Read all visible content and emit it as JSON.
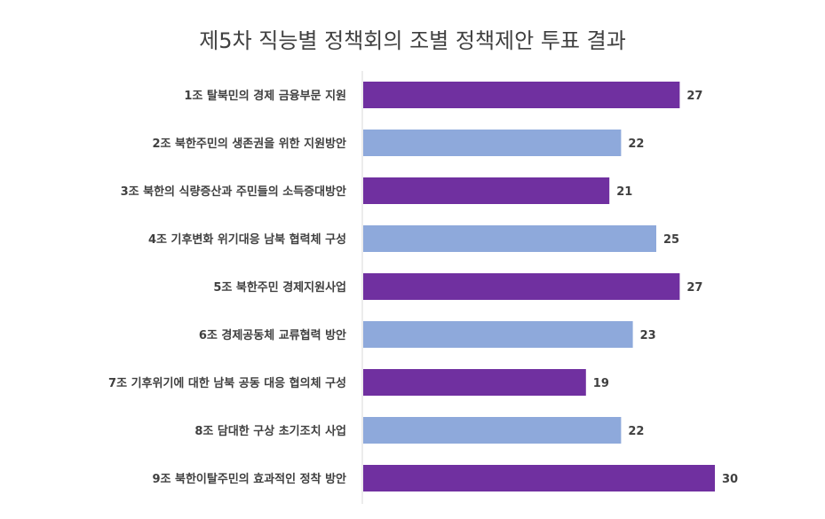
{
  "chart_data": {
    "type": "bar",
    "orientation": "horizontal",
    "title": "제5차 직능별 정책회의 조별 정책제안 투표 결과",
    "categories": [
      "1조 탈북민의 경제 금융부문 지원",
      "2조 북한주민의 생존권을 위한 지원방안",
      "3조 북한의 식량증산과 주민들의 소득증대방안",
      "4조 기후변화 위기대응 남북 협력체 구성",
      "5조 북한주민 경제지원사업",
      "6조 경제공동체 교류협력 방안",
      "7조 기후위기에 대한 남북 공동 대응 협의체 구성",
      "8조 담대한 구상 초기조치 사업",
      "9조 북한이탈주민의 효과적인 정착 방안"
    ],
    "values": [
      27,
      22,
      21,
      25,
      27,
      23,
      19,
      22,
      30
    ],
    "bar_colors": [
      "#7030A0",
      "#8EA9DB",
      "#7030A0",
      "#8EA9DB",
      "#7030A0",
      "#8EA9DB",
      "#7030A0",
      "#8EA9DB",
      "#7030A0"
    ],
    "xlim": [
      0,
      30
    ],
    "data_labels": true,
    "grid": false,
    "legend": "none"
  }
}
